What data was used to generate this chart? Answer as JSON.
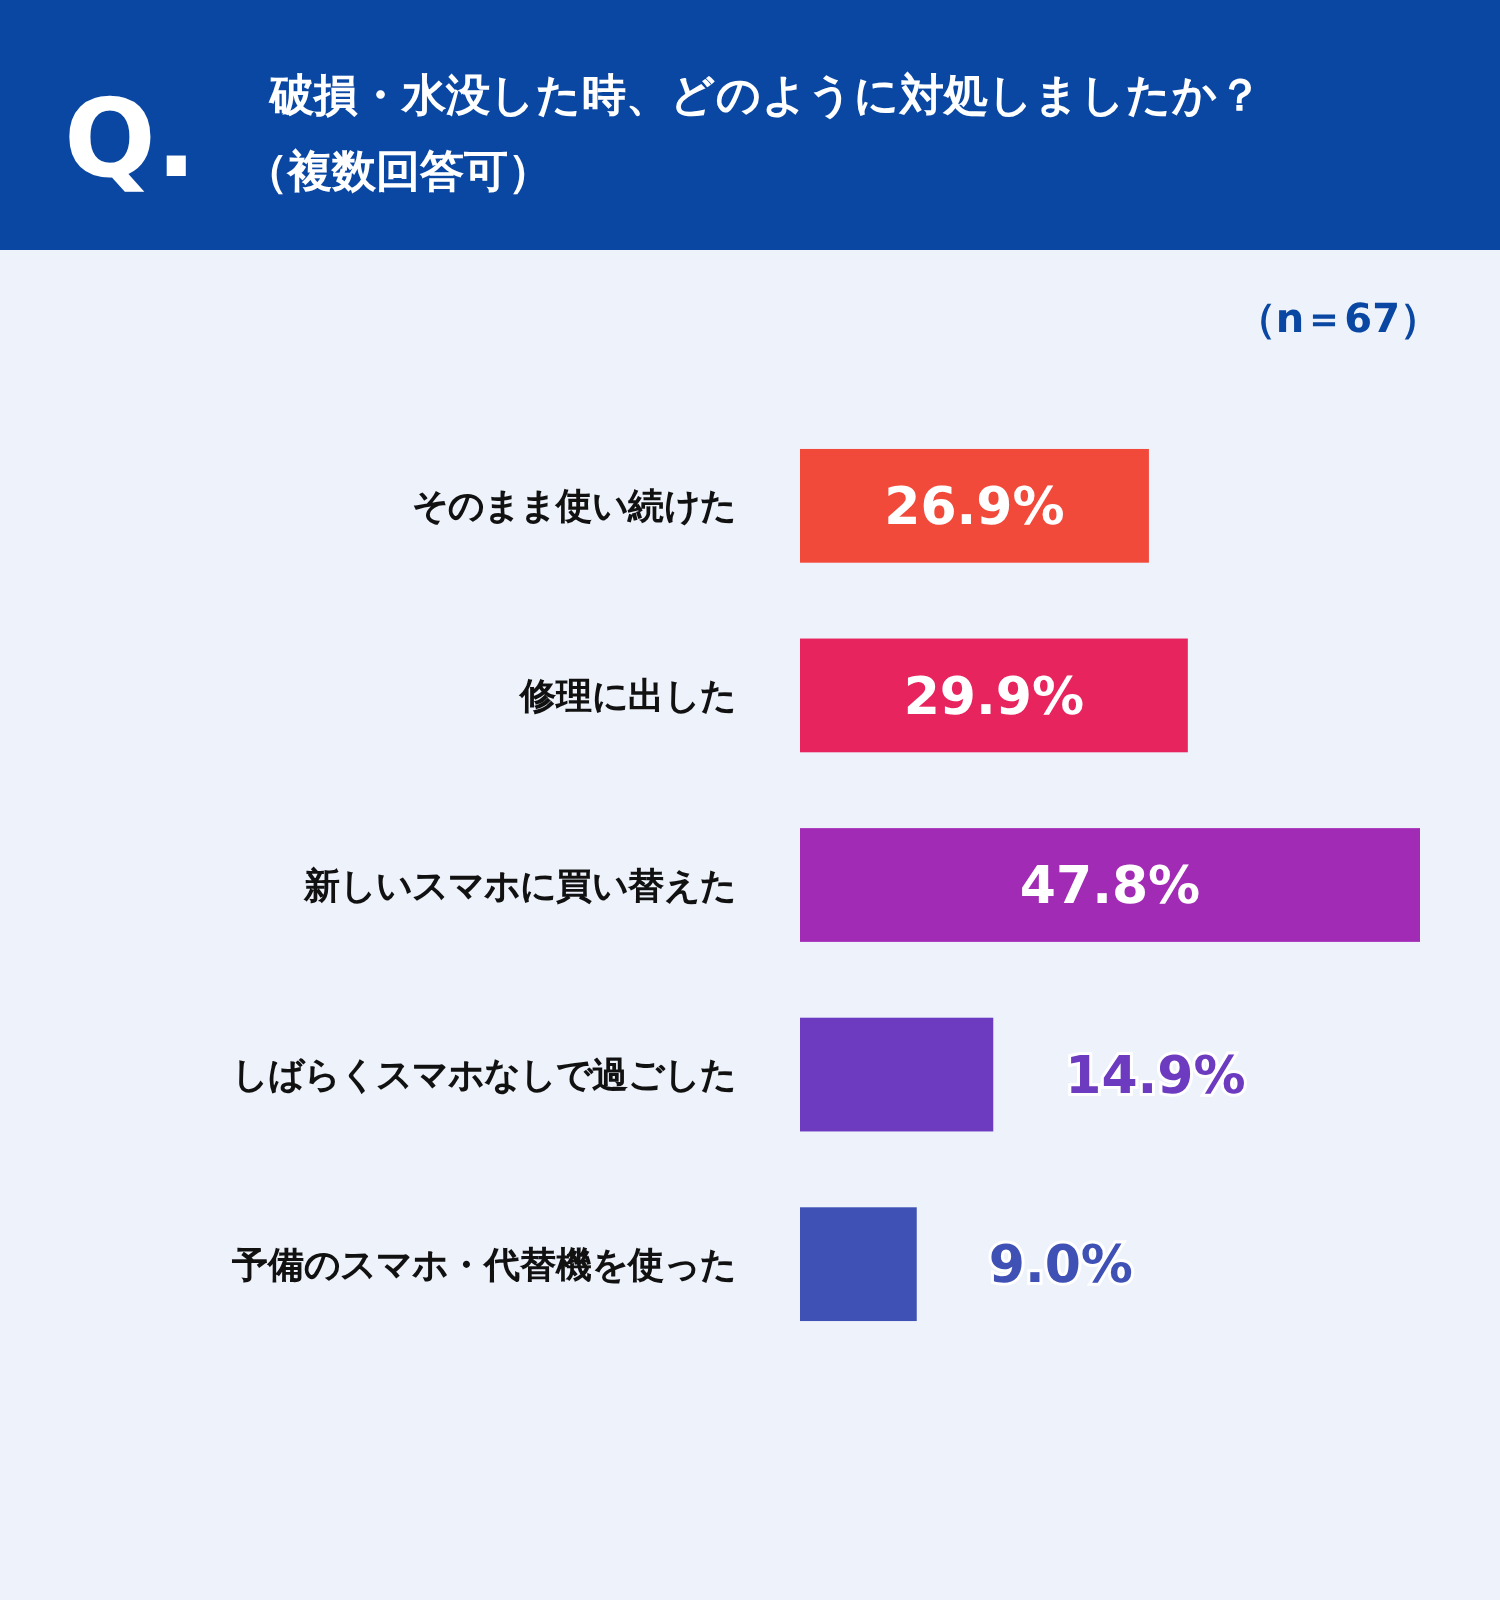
{
  "chart_data": {
    "type": "bar",
    "orientation": "horizontal",
    "title": "破損・水没した時、どのように対処しましたか？",
    "subtitle": "（複数回答可）",
    "annotations": [
      "Q.",
      "（n＝67）"
    ],
    "categories": [
      "そのまま使い続けた",
      "修理に出した",
      "新しいスマホに買い替えた",
      "しばらくスマホなしで過ごした",
      "予備のスマホ・代替機を使った"
    ],
    "values": [
      26.9,
      29.9,
      47.8,
      14.9,
      9.0
    ],
    "colors": [
      "#f24a3a",
      "#e8245e",
      "#a22bb5",
      "#6d3bc0",
      "#3f51b5"
    ],
    "value_labels": [
      "26.9%",
      "29.9%",
      "47.8%",
      "14.9%",
      "9.0%"
    ]
  }
}
